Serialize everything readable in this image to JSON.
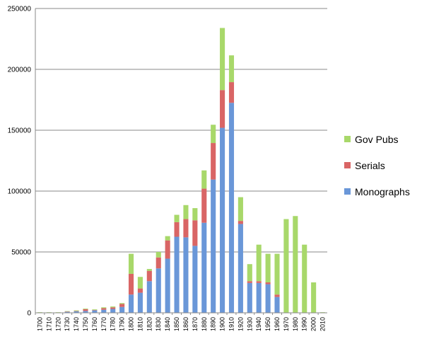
{
  "chart_data": {
    "type": "bar",
    "stacked": true,
    "categories": [
      "1700",
      "1710",
      "1720",
      "1730",
      "1740",
      "1750",
      "1760",
      "1770",
      "1780",
      "1790",
      "1800",
      "1810",
      "1820",
      "1830",
      "1840",
      "1850",
      "1860",
      "1870",
      "1880",
      "1890",
      "1900",
      "1910",
      "1920",
      "1930",
      "1940",
      "1950",
      "1960",
      "1970",
      "1980",
      "1990",
      "2000",
      "2010"
    ],
    "series": [
      {
        "name": "Monographs",
        "color": "#6a97d8",
        "values": [
          200,
          300,
          300,
          800,
          1200,
          1500,
          2000,
          2500,
          3200,
          4800,
          15000,
          16500,
          26000,
          36500,
          44500,
          62500,
          62000,
          55000,
          74000,
          109500,
          152000,
          172500,
          73000,
          24500,
          24500,
          23500,
          13000,
          0,
          0,
          0,
          0,
          0
        ]
      },
      {
        "name": "Serials",
        "color": "#d96565",
        "values": [
          0,
          0,
          0,
          300,
          300,
          1500,
          300,
          1300,
          1300,
          2500,
          17000,
          3500,
          8500,
          9000,
          15000,
          12000,
          15000,
          21000,
          28000,
          30000,
          31000,
          17000,
          2500,
          1500,
          1500,
          1500,
          2000,
          0,
          0,
          0,
          0,
          0
        ]
      },
      {
        "name": "Gov Pubs",
        "color": "#a8d86a",
        "values": [
          300,
          200,
          200,
          300,
          500,
          500,
          500,
          700,
          700,
          700,
          16500,
          9500,
          1500,
          4500,
          3500,
          6000,
          11500,
          10000,
          15000,
          15000,
          51000,
          22000,
          19500,
          14000,
          30000,
          23500,
          33500,
          77000,
          79500,
          56000,
          25000,
          500
        ]
      }
    ],
    "ylim": [
      0,
      250000
    ],
    "yticks": [
      "0",
      "50000",
      "100000",
      "150000",
      "200000",
      "250000"
    ],
    "legend_order": [
      "Gov Pubs",
      "Serials",
      "Monographs"
    ],
    "legend_position": "right",
    "grid": true
  }
}
